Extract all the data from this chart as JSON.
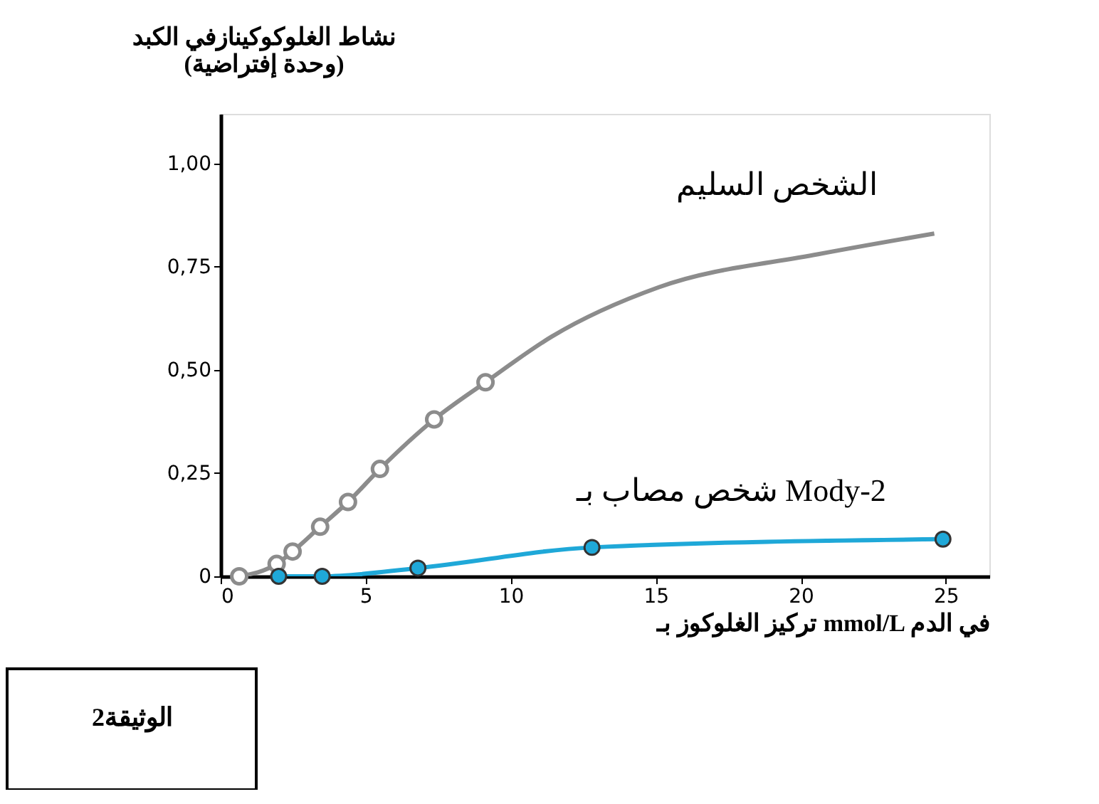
{
  "chart_data": {
    "type": "line",
    "xlabel": "تركيز الغلوكوز بـ mmol/L في الدم",
    "ylabel": "نشاط الغلوكوكينازفي الكبد\n(وحدة إفتراضية)",
    "xlim": [
      0,
      26.5
    ],
    "ylim": [
      0,
      1.12
    ],
    "xticks": [
      0,
      5,
      10,
      15,
      20,
      25
    ],
    "yticks": [
      {
        "value": 0,
        "label": "0"
      },
      {
        "value": 0.25,
        "label": "0,25"
      },
      {
        "value": 0.5,
        "label": "0,50"
      },
      {
        "value": 0.75,
        "label": "0,75"
      },
      {
        "value": 1,
        "label": "1,00"
      }
    ],
    "grid": false,
    "series": [
      {
        "name": "الشخص السليم",
        "color": "#8c8c8c",
        "marker": "none",
        "x": [
          0.64,
          1.93,
          2.48,
          3.43,
          4.39,
          5.49,
          7.36,
          9.13,
          11.4,
          15.1,
          20.6,
          24.6
        ],
        "values": [
          0,
          0.03,
          0.06,
          0.12,
          0.18,
          0.26,
          0.38,
          0.47,
          0.58,
          0.7,
          0.78,
          0.83
        ]
      },
      {
        "type": "scatter",
        "color": "#8c8c8c",
        "marker": "circle",
        "x": [
          0.64,
          1.93,
          2.48,
          3.43,
          4.39,
          5.49,
          7.36,
          9.13
        ],
        "values": [
          0,
          0.03,
          0.06,
          0.12,
          0.18,
          0.26,
          0.38,
          0.47
        ]
      },
      {
        "name": "شخص مصاب بـ Mody-2",
        "color": "#1fa8d8",
        "marker": "circle",
        "x": [
          2.0,
          3.5,
          6.8,
          12.8,
          24.9
        ],
        "values": [
          0,
          0,
          0.02,
          0.07,
          0.09
        ]
      }
    ],
    "annotations": [
      "الوثيقة2"
    ]
  }
}
